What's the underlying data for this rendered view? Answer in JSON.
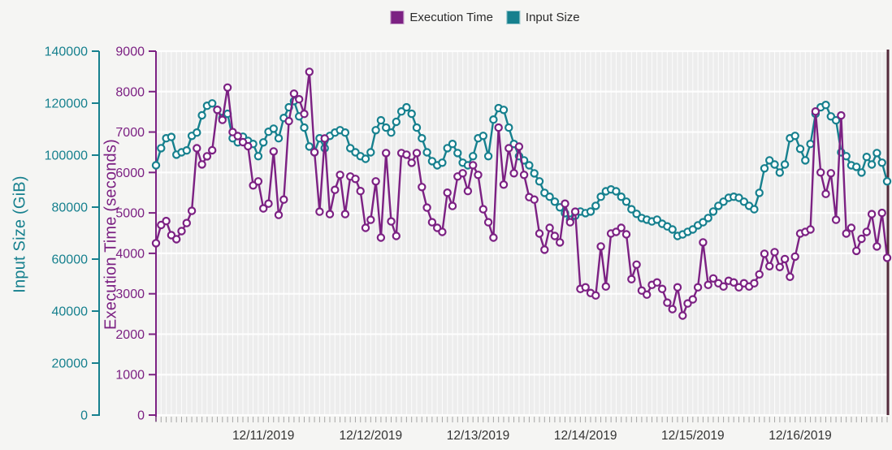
{
  "legend": {
    "items": [
      {
        "label": "Execution Time",
        "color": "#7c2183"
      },
      {
        "label": "Input Size",
        "color": "#16808e"
      }
    ]
  },
  "chart_data": {
    "type": "line",
    "title": "",
    "x_axis": {
      "tick_labels": [
        "12/11/2019",
        "12/12/2019",
        "12/13/2019",
        "12/14/2019",
        "12/15/2019",
        "12/16/2019"
      ],
      "tick_indices": [
        21,
        42,
        63,
        84,
        105,
        126
      ],
      "num_points": 144
    },
    "y_axes": {
      "input_size": {
        "title": "Input Size (GiB)",
        "min": 0,
        "max": 140000,
        "step": 20000,
        "color": "#16808e",
        "tick_labels": [
          "0",
          "20000",
          "40000",
          "60000",
          "80000",
          "100000",
          "120000",
          "140000"
        ]
      },
      "execution_time": {
        "title": "Execution Time (seconds)",
        "min": 0,
        "max": 9000,
        "step": 1000,
        "color": "#7c2183",
        "tick_labels": [
          "0",
          "1000",
          "2000",
          "3000",
          "4000",
          "5000",
          "6000",
          "7000",
          "8000",
          "9000"
        ]
      }
    },
    "series": [
      {
        "name": "Execution Time",
        "y_axis": "execution_time",
        "color": "#7c2183",
        "marker": "open-circle",
        "values": [
          4250,
          4700,
          4800,
          4450,
          4350,
          4550,
          4750,
          5050,
          6600,
          6200,
          6400,
          6550,
          7550,
          7300,
          8100,
          7000,
          6900,
          6750,
          6650,
          5680,
          5780,
          5110,
          5230,
          6520,
          4950,
          5330,
          7270,
          7950,
          7810,
          7450,
          8490,
          6500,
          5030,
          6840,
          4970,
          5570,
          5940,
          4970,
          5900,
          5840,
          5540,
          4630,
          4830,
          5780,
          4390,
          6480,
          4790,
          4430,
          6480,
          6440,
          6240,
          6480,
          5640,
          5130,
          4770,
          4630,
          4530,
          5500,
          5170,
          5900,
          5980,
          5540,
          6180,
          5940,
          5090,
          4770,
          4390,
          7110,
          5700,
          6600,
          5980,
          6640,
          5940,
          5390,
          5330,
          4490,
          4090,
          4630,
          4430,
          4270,
          5230,
          4770,
          5030,
          3120,
          3160,
          3020,
          2960,
          4170,
          3180,
          4490,
          4530,
          4630,
          4470,
          3360,
          3720,
          3080,
          2980,
          3220,
          3280,
          3120,
          2780,
          2620,
          3160,
          2460,
          2760,
          2860,
          3160,
          4270,
          3220,
          3380,
          3260,
          3180,
          3320,
          3280,
          3160,
          3260,
          3180,
          3260,
          3480,
          3990,
          3680,
          4030,
          3660,
          3860,
          3420,
          3920,
          4490,
          4530,
          4590,
          7510,
          6000,
          5470,
          5980,
          4830,
          7410,
          4490,
          4630,
          4060,
          4360,
          4530,
          4970,
          4170,
          5000,
          3890
        ]
      },
      {
        "name": "Input Size",
        "y_axis": "input_size",
        "color": "#16808e",
        "marker": "open-circle",
        "values": [
          96100,
          102700,
          106500,
          107000,
          100200,
          101100,
          101800,
          107400,
          108700,
          115300,
          119000,
          119900,
          117400,
          114300,
          115900,
          106500,
          104900,
          107100,
          105500,
          104300,
          99600,
          104900,
          109000,
          110200,
          106500,
          114300,
          118400,
          120800,
          114900,
          110600,
          103300,
          101100,
          106500,
          102700,
          107400,
          108700,
          109600,
          108700,
          102700,
          101100,
          99600,
          98600,
          101100,
          109600,
          113400,
          110600,
          108700,
          112800,
          116800,
          118400,
          115900,
          110600,
          106500,
          101100,
          97700,
          96100,
          97100,
          102700,
          104300,
          100800,
          97100,
          96100,
          99600,
          106500,
          107400,
          99600,
          113700,
          118100,
          117400,
          110600,
          104300,
          99600,
          98000,
          96100,
          93000,
          89900,
          85500,
          84000,
          82100,
          79900,
          77700,
          75200,
          76700,
          78300,
          77700,
          78300,
          80500,
          84000,
          86100,
          86800,
          86100,
          84000,
          82100,
          79200,
          77400,
          75800,
          75200,
          74500,
          75200,
          73600,
          72600,
          71400,
          68900,
          69500,
          70500,
          71400,
          73000,
          74200,
          75800,
          78300,
          80500,
          82100,
          83600,
          84000,
          83600,
          82100,
          80500,
          79200,
          85500,
          94900,
          98000,
          96400,
          93300,
          96400,
          106500,
          107400,
          102400,
          98000,
          104300,
          115900,
          118400,
          119300,
          114900,
          113400,
          101100,
          99600,
          96100,
          95500,
          93300,
          99300,
          96400,
          100800,
          97100,
          89900
        ]
      }
    ],
    "style": {
      "page_bg": "#f5f5f3",
      "plot_bg": "#ededed",
      "grid_color": "#ffffff",
      "x_tick_color": "#a6a6a6",
      "date_label_color": "#333333",
      "right_border_color": "#53293a"
    }
  }
}
